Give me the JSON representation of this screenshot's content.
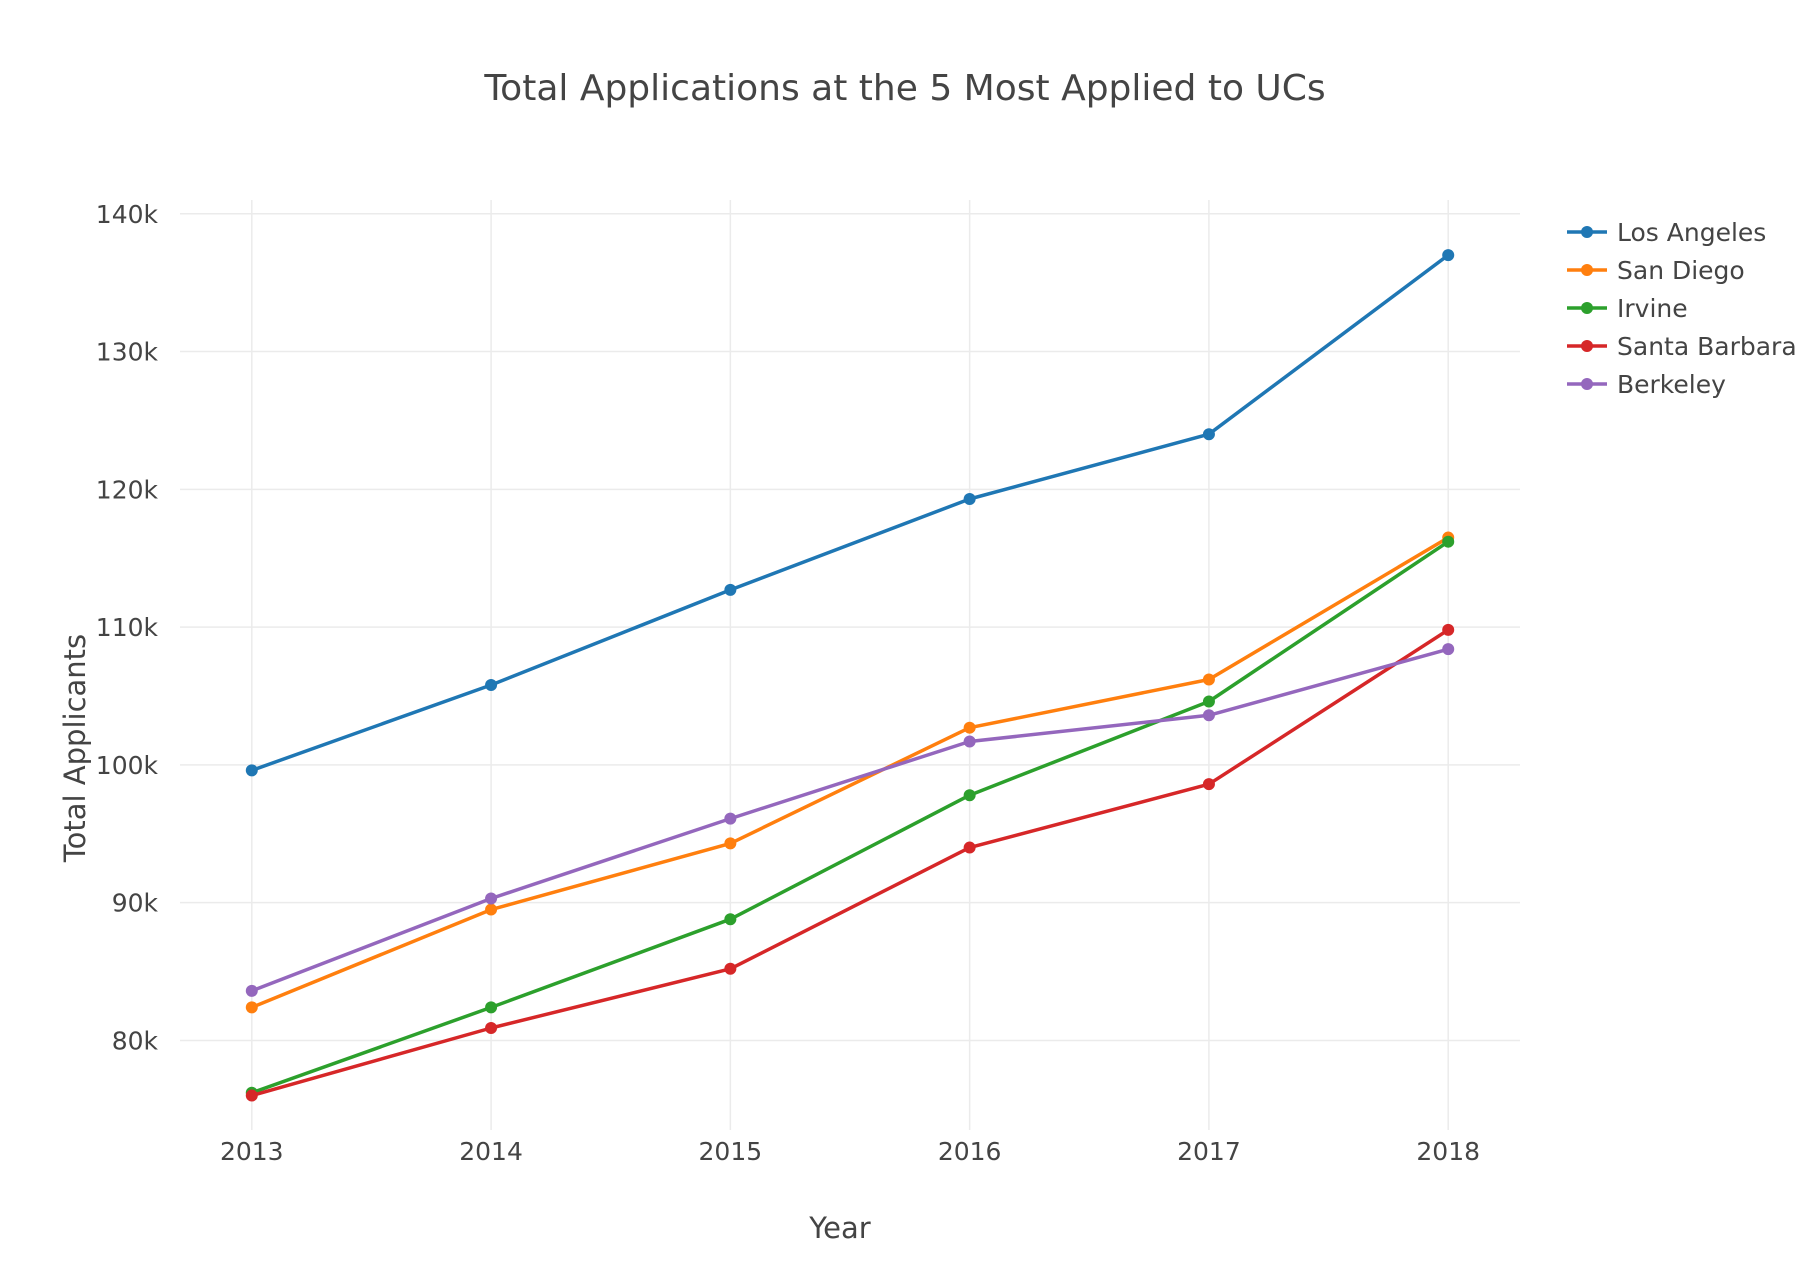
{
  "chart_data": {
    "type": "line",
    "title": "Total Applications at the 5 Most Applied to UCs",
    "xlabel": "Year",
    "ylabel": "Total Applicants",
    "x": [
      2013,
      2014,
      2015,
      2016,
      2017,
      2018
    ],
    "x_tick_labels": [
      "2013",
      "2014",
      "2015",
      "2016",
      "2017",
      "2018"
    ],
    "y_ticks": [
      80000,
      90000,
      100000,
      110000,
      120000,
      130000,
      140000
    ],
    "y_tick_labels": [
      "80k",
      "90k",
      "100k",
      "110k",
      "120k",
      "130k",
      "140k"
    ],
    "ylim": [
      73500,
      141000
    ],
    "xlim": [
      2012.7,
      2018.3
    ],
    "grid": true,
    "legend_position": "top-right, outside plot area",
    "series": [
      {
        "name": "Los Angeles",
        "color": "#1f77b4",
        "values": [
          99600,
          105800,
          112700,
          119300,
          124000,
          137000
        ]
      },
      {
        "name": "San Diego",
        "color": "#ff7f0e",
        "values": [
          82400,
          89500,
          94300,
          102700,
          106200,
          116500
        ]
      },
      {
        "name": "Irvine",
        "color": "#2ca02c",
        "values": [
          76200,
          82400,
          88800,
          97800,
          104600,
          116200
        ]
      },
      {
        "name": "Santa Barbara",
        "color": "#d62728",
        "values": [
          76000,
          80900,
          85200,
          94000,
          98600,
          109800
        ]
      },
      {
        "name": "Berkeley",
        "color": "#9467bd",
        "values": [
          83600,
          90300,
          96100,
          101700,
          103600,
          108400
        ]
      }
    ]
  }
}
